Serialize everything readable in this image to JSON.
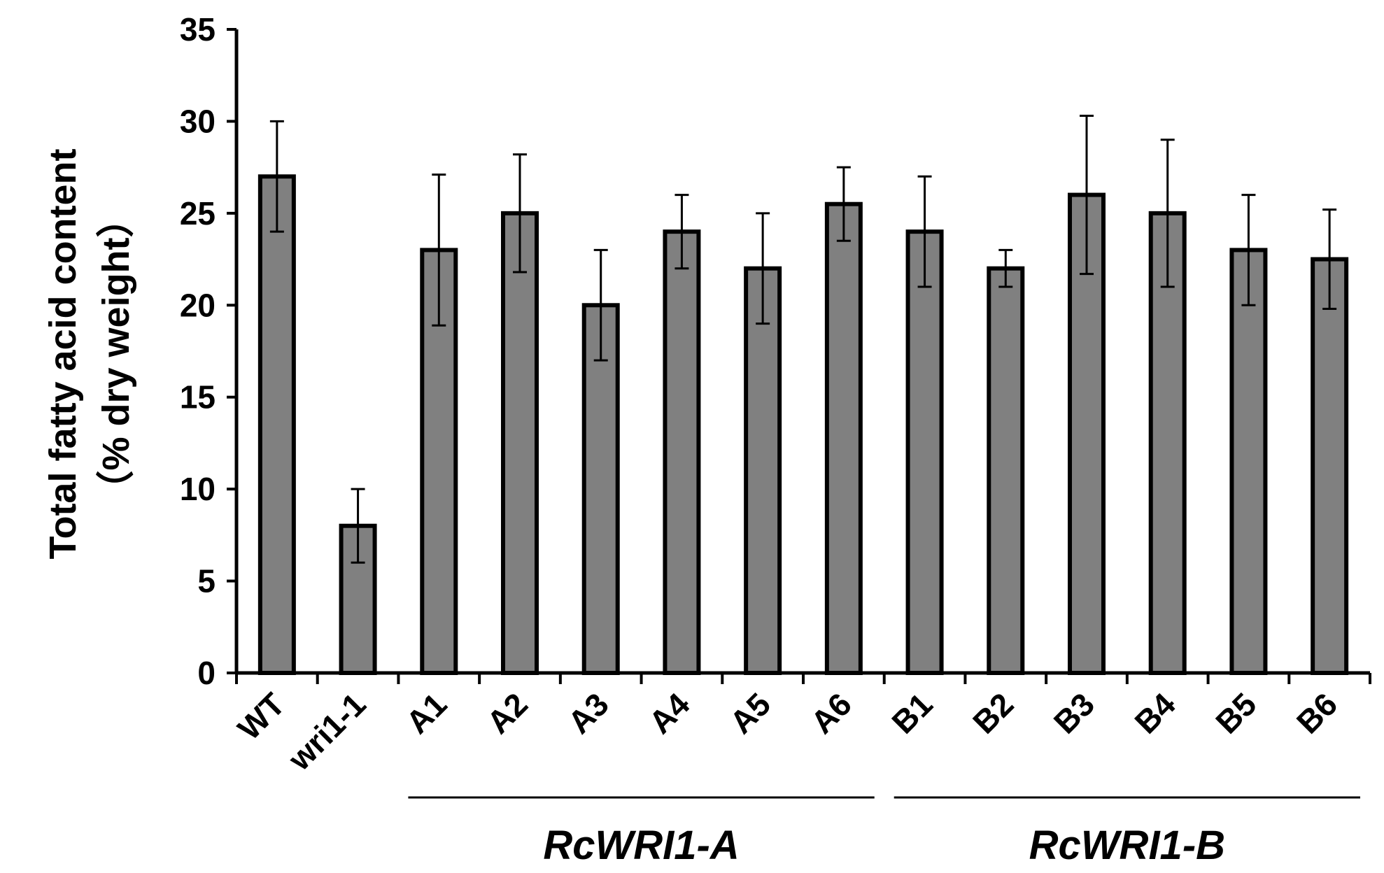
{
  "chart_data": {
    "type": "bar",
    "title": "",
    "xlabel": "",
    "ylabel": "Total fatty acid content",
    "ylabel_line2": "（% dry weight）",
    "ylim": [
      0,
      35
    ],
    "yticks": [
      0,
      5,
      10,
      15,
      20,
      25,
      30,
      35
    ],
    "grid": false,
    "legend": "none",
    "categories": [
      "WT",
      "wri1-1",
      "A1",
      "A2",
      "A3",
      "A4",
      "A5",
      "A6",
      "B1",
      "B2",
      "B3",
      "B4",
      "B5",
      "B6"
    ],
    "series": [
      {
        "values": [
          27,
          8,
          23,
          25,
          20,
          24,
          22,
          25.5,
          24,
          22,
          26,
          25,
          23,
          22.5
        ],
        "errors": [
          3,
          2,
          4.1,
          3.2,
          3,
          2,
          3,
          2,
          3,
          1,
          4.3,
          4,
          3,
          2.7
        ]
      }
    ],
    "groups": [
      {
        "label": "RcWRI1-A",
        "from": "A1",
        "to": "A6"
      },
      {
        "label": "RcWRI1-B",
        "from": "B1",
        "to": "B6"
      }
    ],
    "colors": {
      "bar_fill": "#808080",
      "bar_stroke": "#000000",
      "axis": "#000000"
    }
  }
}
